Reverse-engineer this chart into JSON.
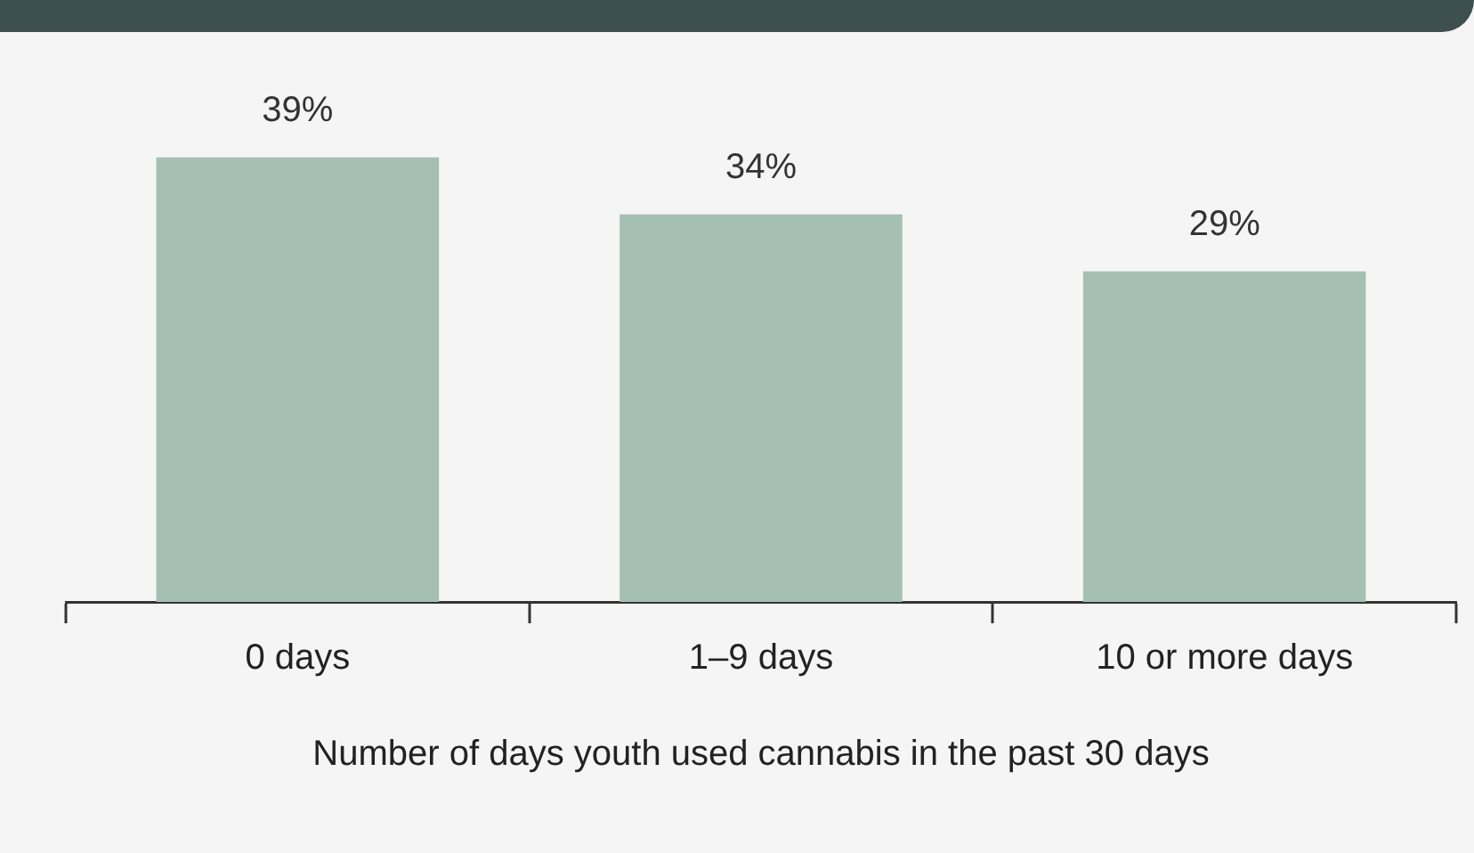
{
  "chart_data": {
    "type": "bar",
    "xlabel": "Number of days youth used cannabis in the past 30 days",
    "categories": [
      "0 days",
      "1–9 days",
      "10 or more days"
    ],
    "values": [
      39,
      34,
      29
    ],
    "value_labels": [
      "39%",
      "34%",
      "29%"
    ],
    "color": "#a6bfb3",
    "legend": false,
    "grid": false
  }
}
